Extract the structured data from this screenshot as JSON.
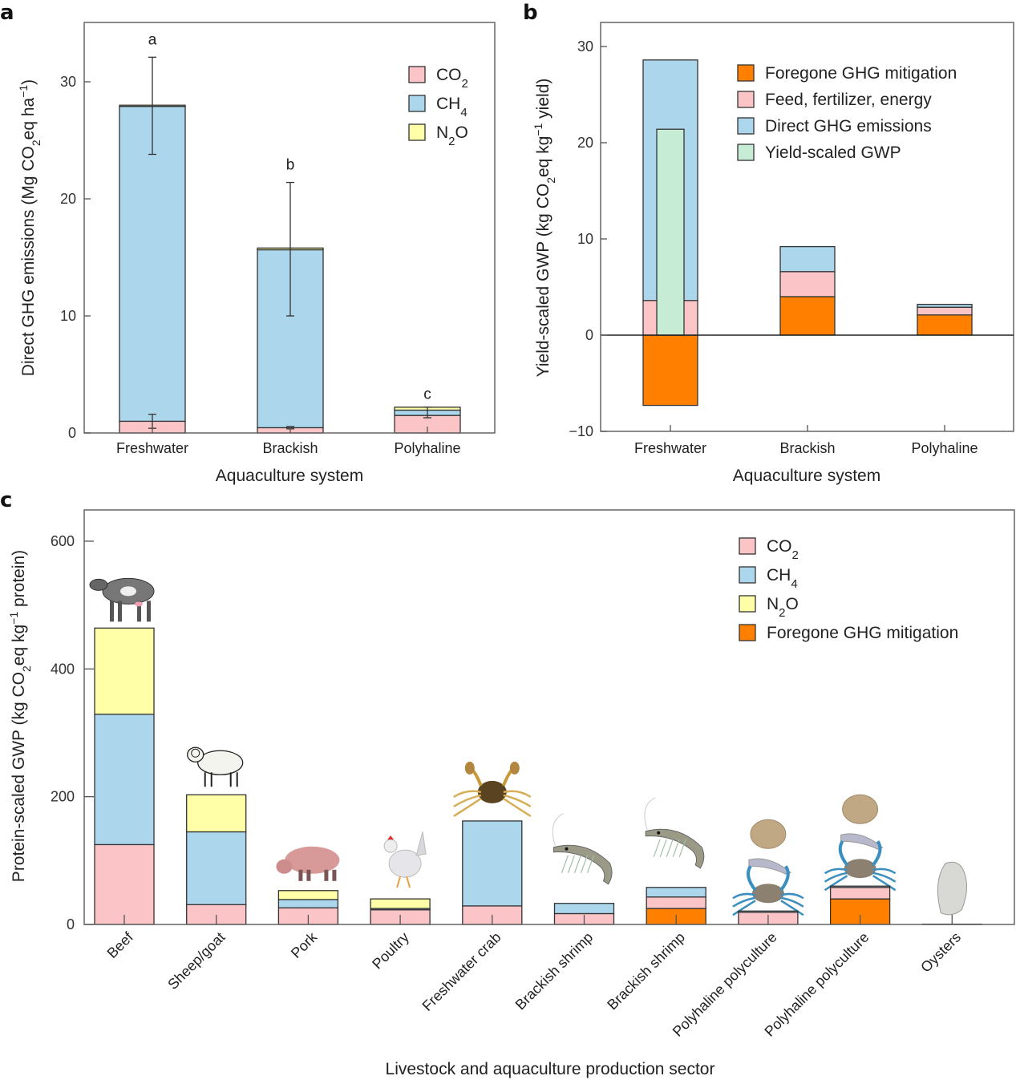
{
  "colors": {
    "co2": "#fbc5c7",
    "ch4": "#acd6ec",
    "n2o": "#ffffa8",
    "foregone": "#ff8000",
    "feed": "#fbc5c7",
    "direct": "#acd6ec",
    "yield_scaled": "#c6ecd6"
  },
  "chart_data": [
    {
      "id": "a",
      "type": "bar",
      "stacked": true,
      "panel_label": "a",
      "title": "",
      "xlabel": "Aquaculture system",
      "ylabel": "Direct GHG emissions (Mg CO2eq ha−1)",
      "ylabel_parts": {
        "pre": "Direct GHG emissions (Mg CO",
        "sub": "2",
        "mid": "eq ha",
        "sup": "−1",
        "post": ")"
      },
      "ylim": [
        0,
        35
      ],
      "yticks": [
        0,
        10,
        20,
        30
      ],
      "categories": [
        "Freshwater",
        "Brackish",
        "Polyhaline"
      ],
      "series": [
        {
          "name": "CO2",
          "key": "co2",
          "label_base": "CO",
          "label_sub": "2",
          "label_post": "",
          "values": [
            1.0,
            0.45,
            1.5
          ]
        },
        {
          "name": "CH4",
          "key": "ch4",
          "label_base": "CH",
          "label_sub": "4",
          "label_post": "",
          "values": [
            26.9,
            15.2,
            0.45
          ]
        },
        {
          "name": "N2O",
          "key": "n2o",
          "label_base": "N",
          "label_sub": "2",
          "label_post": "O",
          "values": [
            0.1,
            0.15,
            0.25
          ]
        }
      ],
      "error_bars": [
        {
          "category": "Freshwater",
          "center": 28.0,
          "low": 23.8,
          "high": 32.1
        },
        {
          "category": "Freshwater",
          "center": 1.0,
          "low": 0.4,
          "high": 1.6
        },
        {
          "category": "Brackish",
          "center": 15.8,
          "low": 10.0,
          "high": 21.4
        },
        {
          "category": "Brackish",
          "center": 0.45,
          "low": 0.35,
          "high": 0.55
        },
        {
          "category": "Polyhaline",
          "center": 1.9,
          "low": 1.3,
          "high": 2.2
        }
      ],
      "significance_letters": [
        {
          "category": "Freshwater",
          "letter": "a",
          "y": 33.2
        },
        {
          "category": "Brackish",
          "letter": "b",
          "y": 22.5
        },
        {
          "category": "Polyhaline",
          "letter": "c",
          "y": 2.9
        }
      ],
      "legend": "top-right"
    },
    {
      "id": "b",
      "type": "bar",
      "stacked": true,
      "panel_label": "b",
      "title": "",
      "xlabel": "Aquaculture system",
      "ylabel": "Yield-scaled GWP (kg CO2eq kg−1 yield)",
      "ylabel_parts": {
        "pre": "Yield-scaled GWP (kg CO",
        "sub": "2",
        "mid": "eq kg",
        "sup": "−1",
        "post": " yield)"
      },
      "ylim": [
        -10,
        32.5
      ],
      "yticks": [
        -10,
        0,
        10,
        20,
        30
      ],
      "categories": [
        "Freshwater",
        "Brackish",
        "Polyhaline"
      ],
      "series": [
        {
          "name": "Foregone GHG mitigation",
          "key": "foregone",
          "values": [
            -7.3,
            4.0,
            2.1
          ]
        },
        {
          "name": "Feed, fertilizer, energy",
          "key": "feed",
          "values": [
            3.6,
            2.6,
            0.8
          ]
        },
        {
          "name": "Direct GHG emissions",
          "key": "direct",
          "values": [
            25.0,
            2.6,
            0.3
          ]
        }
      ],
      "overlay": {
        "name": "Yield-scaled GWP",
        "key": "yield_scaled",
        "values": [
          21.4,
          null,
          null
        ]
      },
      "legend_order": [
        "Foregone GHG mitigation",
        "Feed, fertilizer, energy",
        "Direct GHG emissions",
        "Yield-scaled GWP"
      ],
      "legend": "top-right",
      "zero_line": true
    },
    {
      "id": "c",
      "type": "bar",
      "stacked": true,
      "panel_label": "c",
      "title": "",
      "xlabel": "Livestock and aquaculture production sector",
      "ylabel": "Protein-scaled GWP (kg CO2eq kg−1 protein)",
      "ylabel_parts": {
        "pre": "Protein-scaled GWP (kg CO",
        "sub": "2",
        "mid": "eq kg",
        "sup": "−1",
        "post": " protein)"
      },
      "ylim": [
        0,
        650
      ],
      "yticks": [
        0,
        200,
        400,
        600
      ],
      "categories": [
        "Beef",
        "Sheep/goat",
        "Pork",
        "Poultry",
        "Freshwater crab",
        "Brackish shrimp",
        "Brackish shrimp",
        "Polyhaline polyculture",
        "Polyhaline polyculture",
        "Oysters"
      ],
      "category_icons": [
        "cow-icon",
        "sheep-icon",
        "pig-icon",
        "chicken-icon",
        "crab-icon",
        "shrimp-icon",
        "shrimp-icon",
        "polyculture-icon",
        "polyculture-icon",
        "oyster-icon"
      ],
      "series": [
        {
          "name": "Foregone GHG mitigation",
          "key": "foregone",
          "values": [
            0,
            0,
            0,
            0,
            0,
            0,
            25,
            0,
            40,
            0
          ]
        },
        {
          "name": "CO2",
          "key": "co2",
          "label_base": "CO",
          "label_sub": "2",
          "label_post": "",
          "values": [
            125,
            31,
            26,
            23,
            29,
            17,
            18,
            19,
            18,
            0.5
          ]
        },
        {
          "name": "CH4",
          "key": "ch4",
          "label_base": "CH",
          "label_sub": "4",
          "label_post": "",
          "values": [
            204,
            114,
            13,
            2,
            133,
            16,
            15,
            2,
            2,
            0
          ]
        },
        {
          "name": "N2O",
          "key": "n2o",
          "label_base": "N",
          "label_sub": "2",
          "label_post": "O",
          "values": [
            135,
            58,
            14,
            15,
            0,
            0,
            0,
            0,
            0,
            0
          ]
        }
      ],
      "legend_order": [
        "CO2",
        "CH4",
        "N2O",
        "Foregone GHG mitigation"
      ],
      "legend": "top-right"
    }
  ]
}
